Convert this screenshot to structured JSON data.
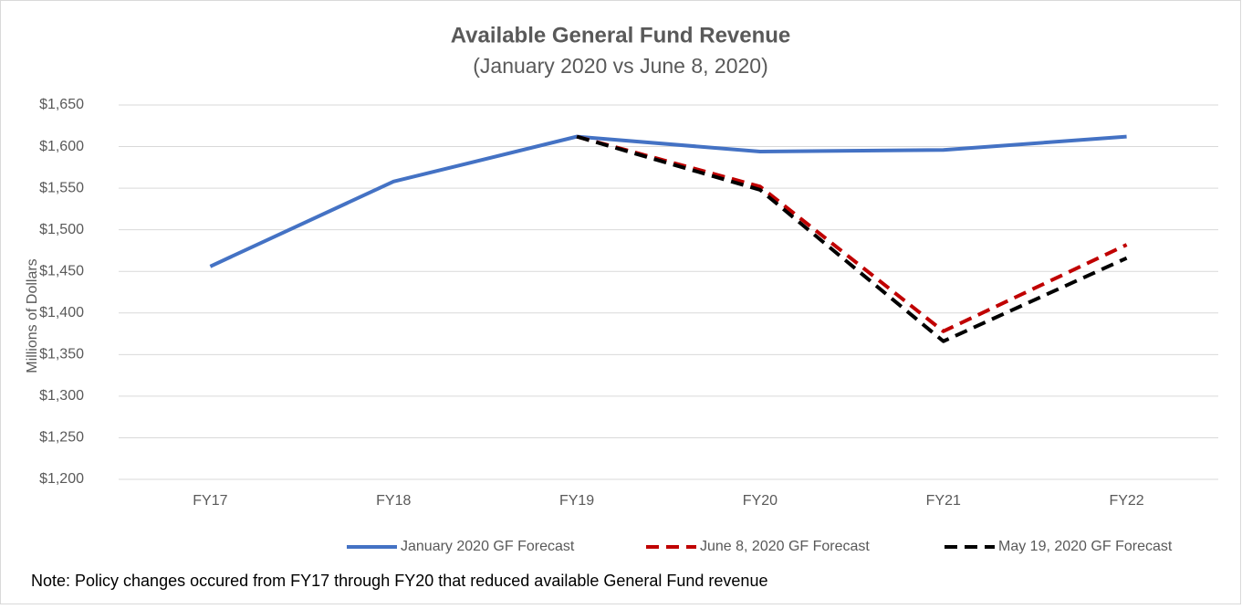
{
  "chart_data": {
    "type": "line",
    "title": "Available General Fund Revenue",
    "subtitle": "(January 2020 vs June 8, 2020)",
    "y_label": "Millions of Dollars",
    "note": "Note: Policy changes occured from FY17 through FY20 that reduced available General Fund revenue",
    "categories": [
      "FY17",
      "FY18",
      "FY19",
      "FY20",
      "FY21",
      "FY22"
    ],
    "series": [
      {
        "name": "January 2020 GF Forecast",
        "color": "#4472c4",
        "dashed": false,
        "values": [
          1456,
          1558,
          1612,
          1594,
          1596,
          1612
        ]
      },
      {
        "name": "June 8, 2020 GF Forecast",
        "color": "#c00000",
        "dashed": true,
        "values": [
          null,
          null,
          1612,
          1552,
          1378,
          1482
        ]
      },
      {
        "name": "May 19, 2020 GF Forecast",
        "color": "#000000",
        "dashed": true,
        "values": [
          null,
          null,
          1612,
          1548,
          1366,
          1466
        ]
      }
    ],
    "ylim": [
      1200,
      1650
    ],
    "yticks": [
      {
        "value": 1200,
        "label": "$1,200"
      },
      {
        "value": 1250,
        "label": "$1,250"
      },
      {
        "value": 1300,
        "label": "$1,300"
      },
      {
        "value": 1350,
        "label": "$1,350"
      },
      {
        "value": 1400,
        "label": "$1,400"
      },
      {
        "value": 1450,
        "label": "$1,450"
      },
      {
        "value": 1500,
        "label": "$1,500"
      },
      {
        "value": 1550,
        "label": "$1,550"
      },
      {
        "value": 1600,
        "label": "$1,600"
      },
      {
        "value": 1650,
        "label": "$1,650"
      }
    ],
    "grid": true,
    "legend": "bottom"
  }
}
